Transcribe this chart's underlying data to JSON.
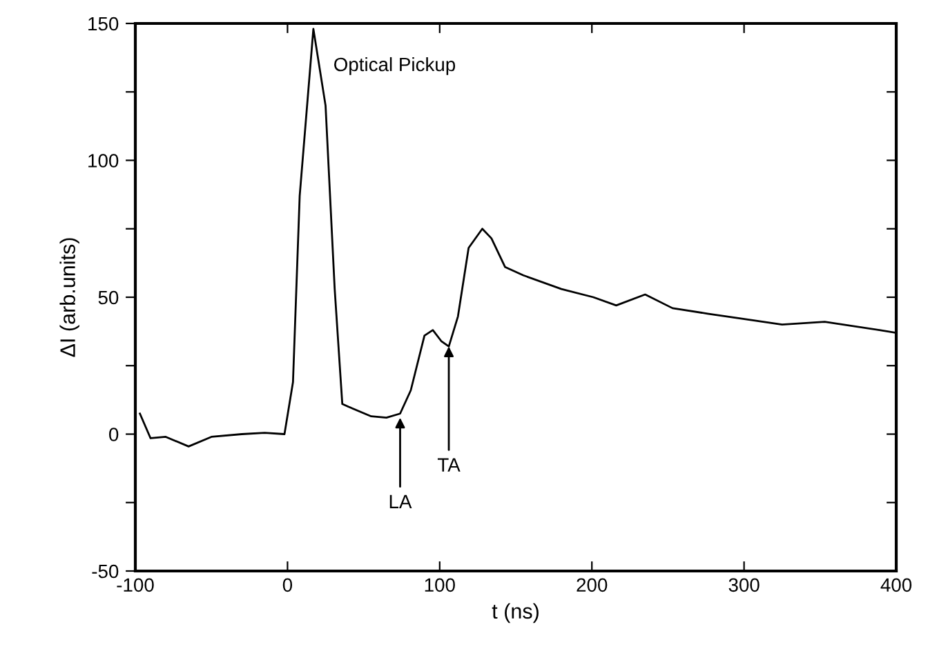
{
  "chart_data": {
    "type": "line",
    "xlabel": "t (ns)",
    "ylabel": "ΔI (arb.units)",
    "x": [
      -97,
      -90,
      -80,
      -65,
      -50,
      -30,
      -15,
      -2,
      3.6,
      8,
      17,
      25,
      31,
      36,
      40,
      55,
      65,
      74,
      81,
      90,
      95.5,
      101,
      106,
      112,
      119,
      128,
      134,
      143,
      155,
      180,
      201,
      216,
      235,
      253,
      276,
      301,
      325,
      353,
      389,
      400
    ],
    "series": [
      {
        "color": "#000000",
        "values": [
          7.5,
          -1.5,
          -1,
          -4.5,
          -1,
          0,
          0.5,
          0,
          19,
          87,
          148,
          120,
          53,
          11,
          10,
          6.5,
          6,
          7.5,
          16,
          36,
          38,
          34,
          32,
          43,
          68,
          75,
          71.5,
          61,
          58,
          53,
          50,
          47,
          51,
          46,
          44,
          42,
          40,
          41,
          38,
          37
        ]
      }
    ],
    "xlim": [
      -100,
      400
    ],
    "xticks": [
      -100,
      0,
      100,
      200,
      300,
      400
    ],
    "ylim": [
      -50,
      150
    ],
    "yticks": [
      -50,
      {
        "value": -25,
        "label": null
      },
      0,
      {
        "value": 25,
        "label": null
      },
      50,
      {
        "value": 75,
        "label": null
      },
      100,
      {
        "value": 125,
        "label": null
      },
      150
    ],
    "grid": false,
    "legend": false,
    "marker": "none",
    "line_style": "solid",
    "annotations": [
      {
        "text": "Optical Pickup",
        "x": 20,
        "y": 148
      },
      {
        "text": "LA",
        "x": 74,
        "y": 6
      },
      {
        "text": "TA",
        "x": 106,
        "y": 32
      }
    ]
  }
}
